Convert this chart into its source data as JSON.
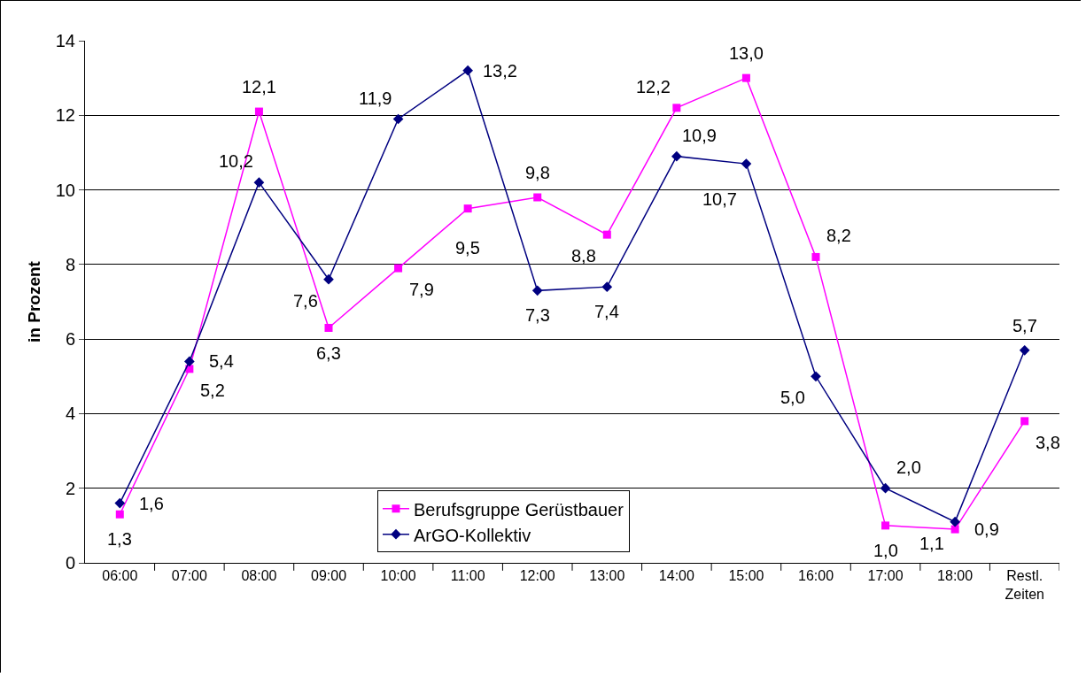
{
  "chart_data": {
    "type": "line",
    "ylabel": "in Prozent",
    "categories": [
      "06:00",
      "07:00",
      "08:00",
      "09:00",
      "10:00",
      "11:00",
      "12:00",
      "13:00",
      "14:00",
      "15:00",
      "16:00",
      "17:00",
      "18:00",
      "Restl. Zeiten"
    ],
    "series": [
      {
        "name": "Berufsgruppe Gerüstbauer",
        "color": "#ff00ff",
        "marker": "square",
        "values": [
          1.3,
          5.2,
          12.1,
          6.3,
          7.9,
          9.5,
          9.8,
          8.8,
          12.2,
          13.0,
          8.2,
          1.0,
          0.9,
          3.8
        ],
        "value_labels": [
          "1,3",
          "5,2",
          "12,1",
          "6,3",
          "7,9",
          "9,5",
          "9,8",
          "8,8",
          "12,2",
          "13,0",
          "8,2",
          "1,0",
          "0,9",
          "3,8"
        ]
      },
      {
        "name": "ArGO-Kollektiv",
        "color": "#000080",
        "marker": "diamond",
        "values": [
          1.6,
          5.4,
          10.2,
          7.6,
          11.9,
          13.2,
          7.3,
          7.4,
          10.9,
          10.7,
          5.0,
          2.0,
          1.1,
          5.7
        ],
        "value_labels": [
          "1,6",
          "5,4",
          "10,2",
          "7,6",
          "11,9",
          "13,2",
          "7,3",
          "7,4",
          "10,9",
          "10,7",
          "5,0",
          "2,0",
          "1,1",
          "5,7"
        ]
      }
    ],
    "ylim": [
      0,
      14
    ],
    "yticks": [
      0,
      2,
      4,
      6,
      8,
      10,
      12,
      14
    ],
    "grid": "y",
    "legend": "bottom",
    "line_style": "solid"
  }
}
